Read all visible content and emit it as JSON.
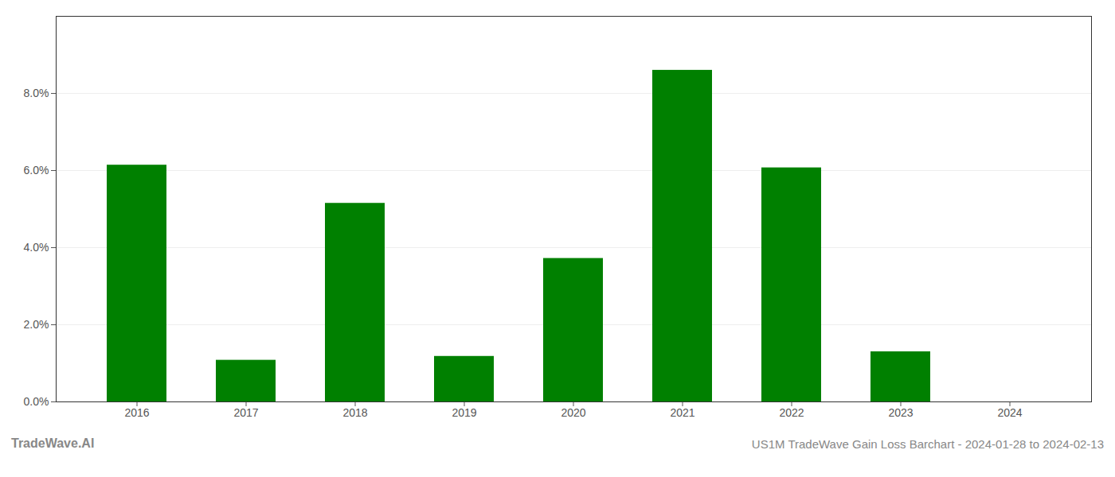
{
  "chart_data": {
    "type": "bar",
    "title": "US1M TradeWave Gain Loss Barchart - 2024-01-28 to 2024-02-13",
    "annotations": [
      "TradeWave.AI"
    ],
    "categories": [
      "2016",
      "2017",
      "2018",
      "2019",
      "2020",
      "2021",
      "2022",
      "2023",
      "2024"
    ],
    "values": [
      0.0614,
      0.0108,
      0.0515,
      0.0118,
      0.0372,
      0.086,
      0.0607,
      0.013,
      0.0
    ],
    "color": "#008000",
    "ylim": [
      0,
      0.1
    ],
    "yticks": [
      {
        "value": 0.0,
        "label": "0.0%"
      },
      {
        "value": 0.02,
        "label": "2.0%"
      },
      {
        "value": 0.04,
        "label": "4.0%"
      },
      {
        "value": 0.06,
        "label": "6.0%"
      },
      {
        "value": 0.08,
        "label": "8.0%"
      }
    ],
    "grid": true
  }
}
